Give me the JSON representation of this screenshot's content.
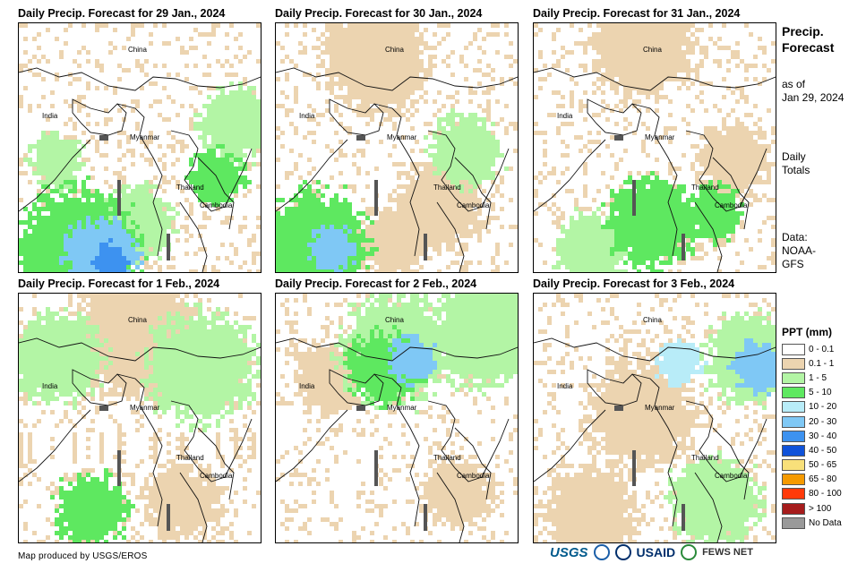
{
  "panels": [
    {
      "title": "Daily Precip. Forecast for 29 Jan., 2024"
    },
    {
      "title": "Daily Precip. Forecast for 30 Jan., 2024"
    },
    {
      "title": "Daily Precip. Forecast for 31 Jan., 2024"
    },
    {
      "title": "Daily Precip. Forecast for 1 Feb., 2024"
    },
    {
      "title": "Daily Precip. Forecast for 2 Feb., 2024"
    },
    {
      "title": "Daily Precip. Forecast for 3 Feb., 2024"
    }
  ],
  "map_labels": {
    "china": "China",
    "india": "India",
    "myanmar": "Myanmar",
    "thailand": "Thailand",
    "cambodia": "Cambodia"
  },
  "sidebar": {
    "title_line1": "Precip.",
    "title_line2": "Forecast",
    "asof_line1": "as of",
    "asof_line2": "Jan 29, 2024",
    "daily_line1": "Daily",
    "daily_line2": "Totals",
    "data_line1": "Data:",
    "data_line2": "NOAA-",
    "data_line3": "GFS"
  },
  "legend": {
    "title": "PPT (mm)",
    "items": [
      {
        "label": "0 - 0.1",
        "color": "#ffffff"
      },
      {
        "label": "0.1 - 1",
        "color": "#ecd4b0"
      },
      {
        "label": "1 - 5",
        "color": "#b3f5a5"
      },
      {
        "label": "5 - 10",
        "color": "#5ee860"
      },
      {
        "label": "10 - 20",
        "color": "#b8ecf8"
      },
      {
        "label": "20 - 30",
        "color": "#7fc8f5"
      },
      {
        "label": "30 - 40",
        "color": "#3d92f0"
      },
      {
        "label": "40 - 50",
        "color": "#0f52d9"
      },
      {
        "label": "50 - 65",
        "color": "#f8e07a"
      },
      {
        "label": "65 - 80",
        "color": "#f59a00"
      },
      {
        "label": "80 - 100",
        "color": "#ff3a0a"
      },
      {
        "label": "> 100",
        "color": "#a61c1c"
      },
      {
        "label": "No Data",
        "color": "#999999"
      }
    ]
  },
  "footer": {
    "credit": "Map produced by USGS/EROS",
    "logo_usgs": "USGS",
    "logo_usaid": "USAID",
    "logo_fews": "FEWS NET"
  }
}
